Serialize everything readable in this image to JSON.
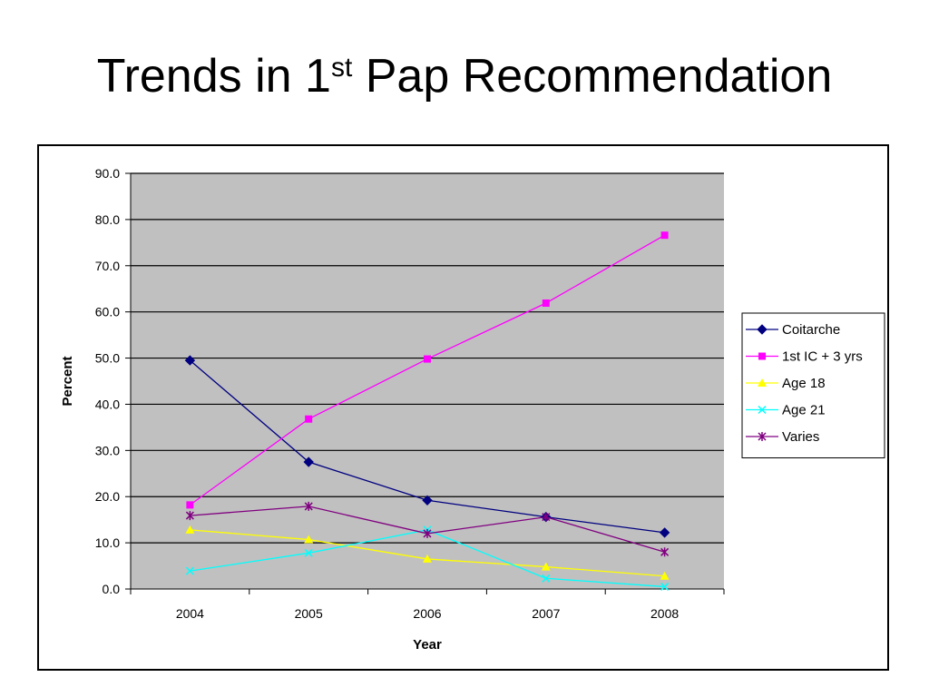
{
  "slide": {
    "title_main": "Trends in 1",
    "title_sup": "st",
    "title_rest": " Pap Recommendation"
  },
  "chart_data": {
    "type": "line",
    "title": "",
    "xlabel": "Year",
    "ylabel": "Percent",
    "categories": [
      "2004",
      "2005",
      "2006",
      "2007",
      "2008"
    ],
    "ylim": [
      0,
      90
    ],
    "yticks": [
      "0.0",
      "10.0",
      "20.0",
      "30.0",
      "40.0",
      "50.0",
      "60.0",
      "70.0",
      "80.0",
      "90.0"
    ],
    "grid": true,
    "plot_background": "#c0c0c0",
    "legend_position": "right",
    "series": [
      {
        "name": "Coitarche",
        "color": "#000080",
        "marker": "diamond",
        "values": [
          49.5,
          27.5,
          19.2,
          15.6,
          12.2
        ]
      },
      {
        "name": "1st IC + 3 yrs",
        "color": "#ff00ff",
        "marker": "square",
        "values": [
          18.2,
          36.8,
          49.8,
          61.9,
          76.6
        ]
      },
      {
        "name": "Age 18",
        "color": "#ffff00",
        "marker": "triangle",
        "values": [
          12.8,
          10.7,
          6.5,
          4.8,
          2.8
        ]
      },
      {
        "name": "Age 21",
        "color": "#00ffff",
        "marker": "x",
        "values": [
          3.9,
          7.8,
          12.8,
          2.3,
          0.5
        ]
      },
      {
        "name": "Varies",
        "color": "#800080",
        "marker": "star",
        "values": [
          15.9,
          17.9,
          12.0,
          15.6,
          8.0
        ]
      }
    ]
  }
}
